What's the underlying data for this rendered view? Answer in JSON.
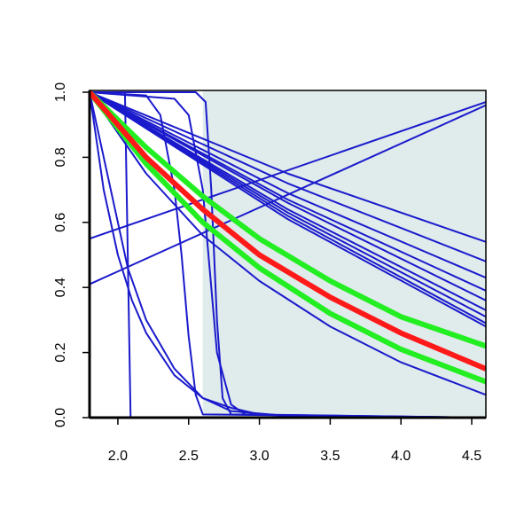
{
  "chart_data": {
    "type": "line",
    "xlim": [
      1.8,
      4.6
    ],
    "ylim": [
      0,
      1
    ],
    "xticks": [
      {
        "value": 2,
        "label": "2.0"
      },
      {
        "value": 2.5,
        "label": "2.5"
      },
      {
        "value": 3,
        "label": "3.0"
      },
      {
        "value": 3.5,
        "label": "3.5"
      },
      {
        "value": 4,
        "label": "4.0"
      },
      {
        "value": 4.5,
        "label": "4.5"
      }
    ],
    "yticks": [
      {
        "value": 0,
        "label": "0.0"
      },
      0.2,
      0.4,
      0.6,
      0.8,
      {
        "value": 1,
        "label": "1.0"
      }
    ],
    "shade_from": 2.6,
    "shade_color": "#e0ebeb",
    "series": [
      {
        "color": "#1a1acc",
        "line_width": 2,
        "x": [
          1.8,
          3.2,
          4.6
        ],
        "values": [
          1,
          0.75,
          0.54
        ]
      },
      {
        "color": "#1a1acc",
        "line_width": 2,
        "x": [
          1.8,
          3.2,
          4.6
        ],
        "values": [
          1,
          0.72,
          0.48
        ]
      },
      {
        "color": "#1a1acc",
        "line_width": 2,
        "x": [
          1.8,
          3.2,
          4.6
        ],
        "values": [
          1,
          0.69,
          0.43
        ]
      },
      {
        "color": "#1a1acc",
        "line_width": 2,
        "x": [
          1.8,
          3.2,
          4.6
        ],
        "values": [
          1,
          0.67,
          0.39
        ]
      },
      {
        "color": "#1a1acc",
        "line_width": 2,
        "x": [
          1.8,
          3.2,
          4.6
        ],
        "values": [
          1,
          0.66,
          0.36
        ]
      },
      {
        "color": "#1a1acc",
        "line_width": 2,
        "x": [
          1.8,
          3.2,
          4.6
        ],
        "values": [
          1,
          0.64,
          0.33
        ]
      },
      {
        "color": "#1a1acc",
        "line_width": 2,
        "x": [
          1.8,
          3.2,
          4.6
        ],
        "values": [
          1,
          0.63,
          0.31
        ]
      },
      {
        "color": "#1a1acc",
        "line_width": 2,
        "x": [
          1.8,
          3.2,
          4.6
        ],
        "values": [
          1,
          0.62,
          0.29
        ]
      },
      {
        "color": "#1a1acc",
        "line_width": 2,
        "x": [
          1.8,
          3.2,
          4.6
        ],
        "values": [
          1,
          0.61,
          0.28
        ]
      },
      {
        "color": "#1a1acc",
        "line_width": 2,
        "x": [
          1.8,
          2.2,
          2.6,
          3.0,
          3.5,
          4.0,
          4.6
        ],
        "values": [
          1,
          0.75,
          0.56,
          0.42,
          0.28,
          0.17,
          0.07
        ]
      },
      {
        "color": "#1a1acc",
        "line_width": 2,
        "x": [
          1.8,
          4.6
        ],
        "values": [
          0.55,
          0.97
        ]
      },
      {
        "color": "#1a1acc",
        "line_width": 2,
        "x": [
          1.8,
          4.6
        ],
        "values": [
          0.41,
          0.96
        ]
      },
      {
        "color": "#1a1acc",
        "line_width": 2,
        "x": [
          1.8,
          1.9,
          2.0,
          2.1,
          2.2,
          2.4,
          2.6,
          2.8,
          3.0,
          3.5,
          4.6
        ],
        "values": [
          1,
          0.7,
          0.5,
          0.36,
          0.26,
          0.13,
          0.06,
          0.03,
          0.01,
          0,
          0
        ]
      },
      {
        "color": "#1a1acc",
        "line_width": 2,
        "x": [
          1.8,
          1.9,
          2.0,
          2.07,
          2.2,
          2.4,
          2.6,
          2.8,
          3.2,
          4.6
        ],
        "values": [
          1,
          0.8,
          0.6,
          0.46,
          0.3,
          0.15,
          0.06,
          0.02,
          0.005,
          0
        ]
      },
      {
        "color": "#1a1acc",
        "line_width": 2,
        "x": [
          1.8,
          2.05,
          2.07,
          2.09,
          4.6
        ],
        "values": [
          1,
          1,
          0.5,
          0,
          0
        ]
      },
      {
        "color": "#1a1acc",
        "line_width": 2,
        "x": [
          1.8,
          2.2,
          2.3,
          2.4,
          2.45,
          2.5,
          2.55,
          2.6,
          4.6
        ],
        "values": [
          1,
          0.99,
          0.93,
          0.7,
          0.5,
          0.25,
          0.07,
          0.01,
          0
        ]
      },
      {
        "color": "#1a1acc",
        "line_width": 2,
        "x": [
          1.8,
          2.4,
          2.5,
          2.6,
          2.7,
          2.8,
          2.9,
          4.6
        ],
        "values": [
          1,
          0.98,
          0.93,
          0.7,
          0.2,
          0.04,
          0.01,
          0
        ]
      },
      {
        "color": "#1a1acc",
        "line_width": 2,
        "x": [
          1.8,
          2.55,
          2.62,
          2.66,
          2.7,
          2.74,
          2.8,
          4.6
        ],
        "values": [
          1,
          1,
          0.97,
          0.7,
          0.3,
          0.06,
          0.01,
          0
        ]
      },
      {
        "color": "#22ee22",
        "line_width": 6,
        "x": [
          1.8,
          2.2,
          2.6,
          3.0,
          3.5,
          4.0,
          4.6
        ],
        "values": [
          1,
          0.83,
          0.68,
          0.55,
          0.42,
          0.31,
          0.22
        ]
      },
      {
        "color": "#22ee22",
        "line_width": 6,
        "x": [
          1.8,
          2.2,
          2.6,
          3.0,
          3.5,
          4.0,
          4.6
        ],
        "values": [
          1,
          0.78,
          0.6,
          0.46,
          0.32,
          0.21,
          0.11
        ]
      },
      {
        "color": "#ff1a1a",
        "line_width": 6,
        "x": [
          1.8,
          2.2,
          2.6,
          3.0,
          3.5,
          4.0,
          4.6
        ],
        "values": [
          1,
          0.8,
          0.64,
          0.5,
          0.37,
          0.26,
          0.15
        ]
      }
    ]
  }
}
